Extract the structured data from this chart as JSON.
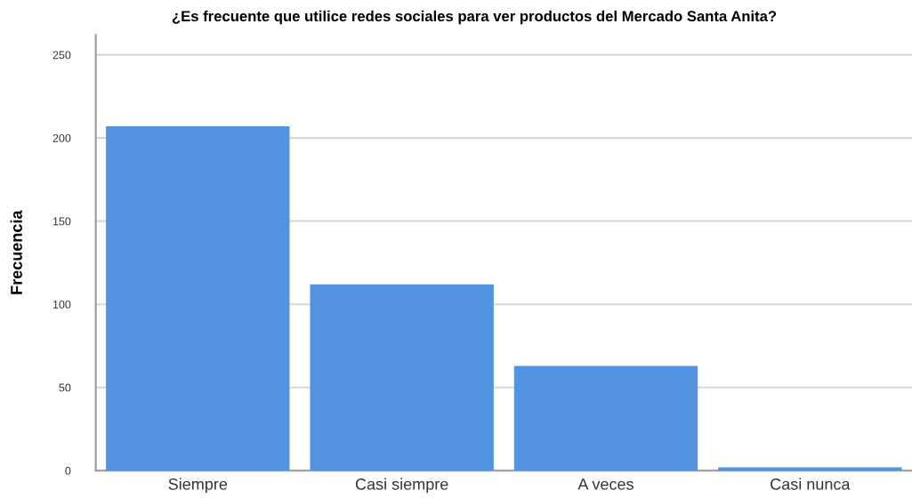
{
  "chart_data": {
    "type": "bar",
    "title": "¿Es frecuente que utilice redes sociales para ver productos del Mercado Santa Anita?",
    "ylabel": "Frecuencia",
    "categories": [
      "Siempre",
      "Casi siempre",
      "A veces",
      "Casi nunca"
    ],
    "values": [
      207,
      112,
      63,
      2
    ],
    "color": "#5294e2",
    "ylim": [
      0,
      262
    ],
    "yticks": [
      0,
      50,
      100,
      150,
      200,
      250
    ],
    "grid": "y"
  }
}
